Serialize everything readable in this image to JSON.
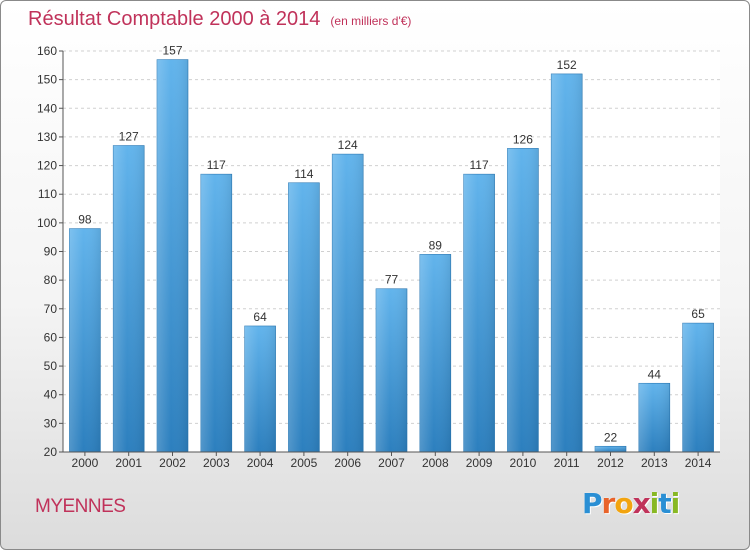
{
  "header": {
    "title": "Résultat Comptable 2000 à 2014",
    "subtitle": "(en milliers d'€)"
  },
  "footer": {
    "town": "MYENNES",
    "logo_letters": [
      "P",
      "r",
      "o",
      "x",
      "i",
      "t",
      "i"
    ],
    "logo_colors": [
      "#2a8fd4",
      "#e8632a",
      "#f2a40f",
      "#c0325a",
      "#88b824",
      "#2a8fd4",
      "#88b824"
    ]
  },
  "colors": {
    "title": "#c0325a",
    "bar_top": "#62b4ec",
    "bar_bottom": "#2c7fbe",
    "grid": "#d0d0d0",
    "axis": "#555555"
  },
  "chart_data": {
    "type": "bar",
    "title": "Résultat Comptable 2000 à 2014",
    "subtitle": "(en milliers d'€)",
    "categories": [
      "2000",
      "2001",
      "2002",
      "2003",
      "2004",
      "2005",
      "2006",
      "2007",
      "2008",
      "2009",
      "2010",
      "2011",
      "2012",
      "2013",
      "2014"
    ],
    "values": [
      98,
      127,
      157,
      117,
      64,
      114,
      124,
      77,
      89,
      117,
      126,
      152,
      22,
      44,
      65
    ],
    "data_labels": [
      "98",
      "127",
      "157",
      "117",
      "64",
      "114",
      "124",
      "77",
      "89",
      "117",
      "126",
      "152",
      "22",
      "44",
      "65"
    ],
    "ylim": [
      20,
      160
    ],
    "yticks": [
      20,
      30,
      40,
      50,
      60,
      70,
      80,
      90,
      100,
      110,
      120,
      130,
      140,
      150,
      160
    ],
    "xlabel": "",
    "ylabel": "",
    "grid": true,
    "legend": "none"
  }
}
